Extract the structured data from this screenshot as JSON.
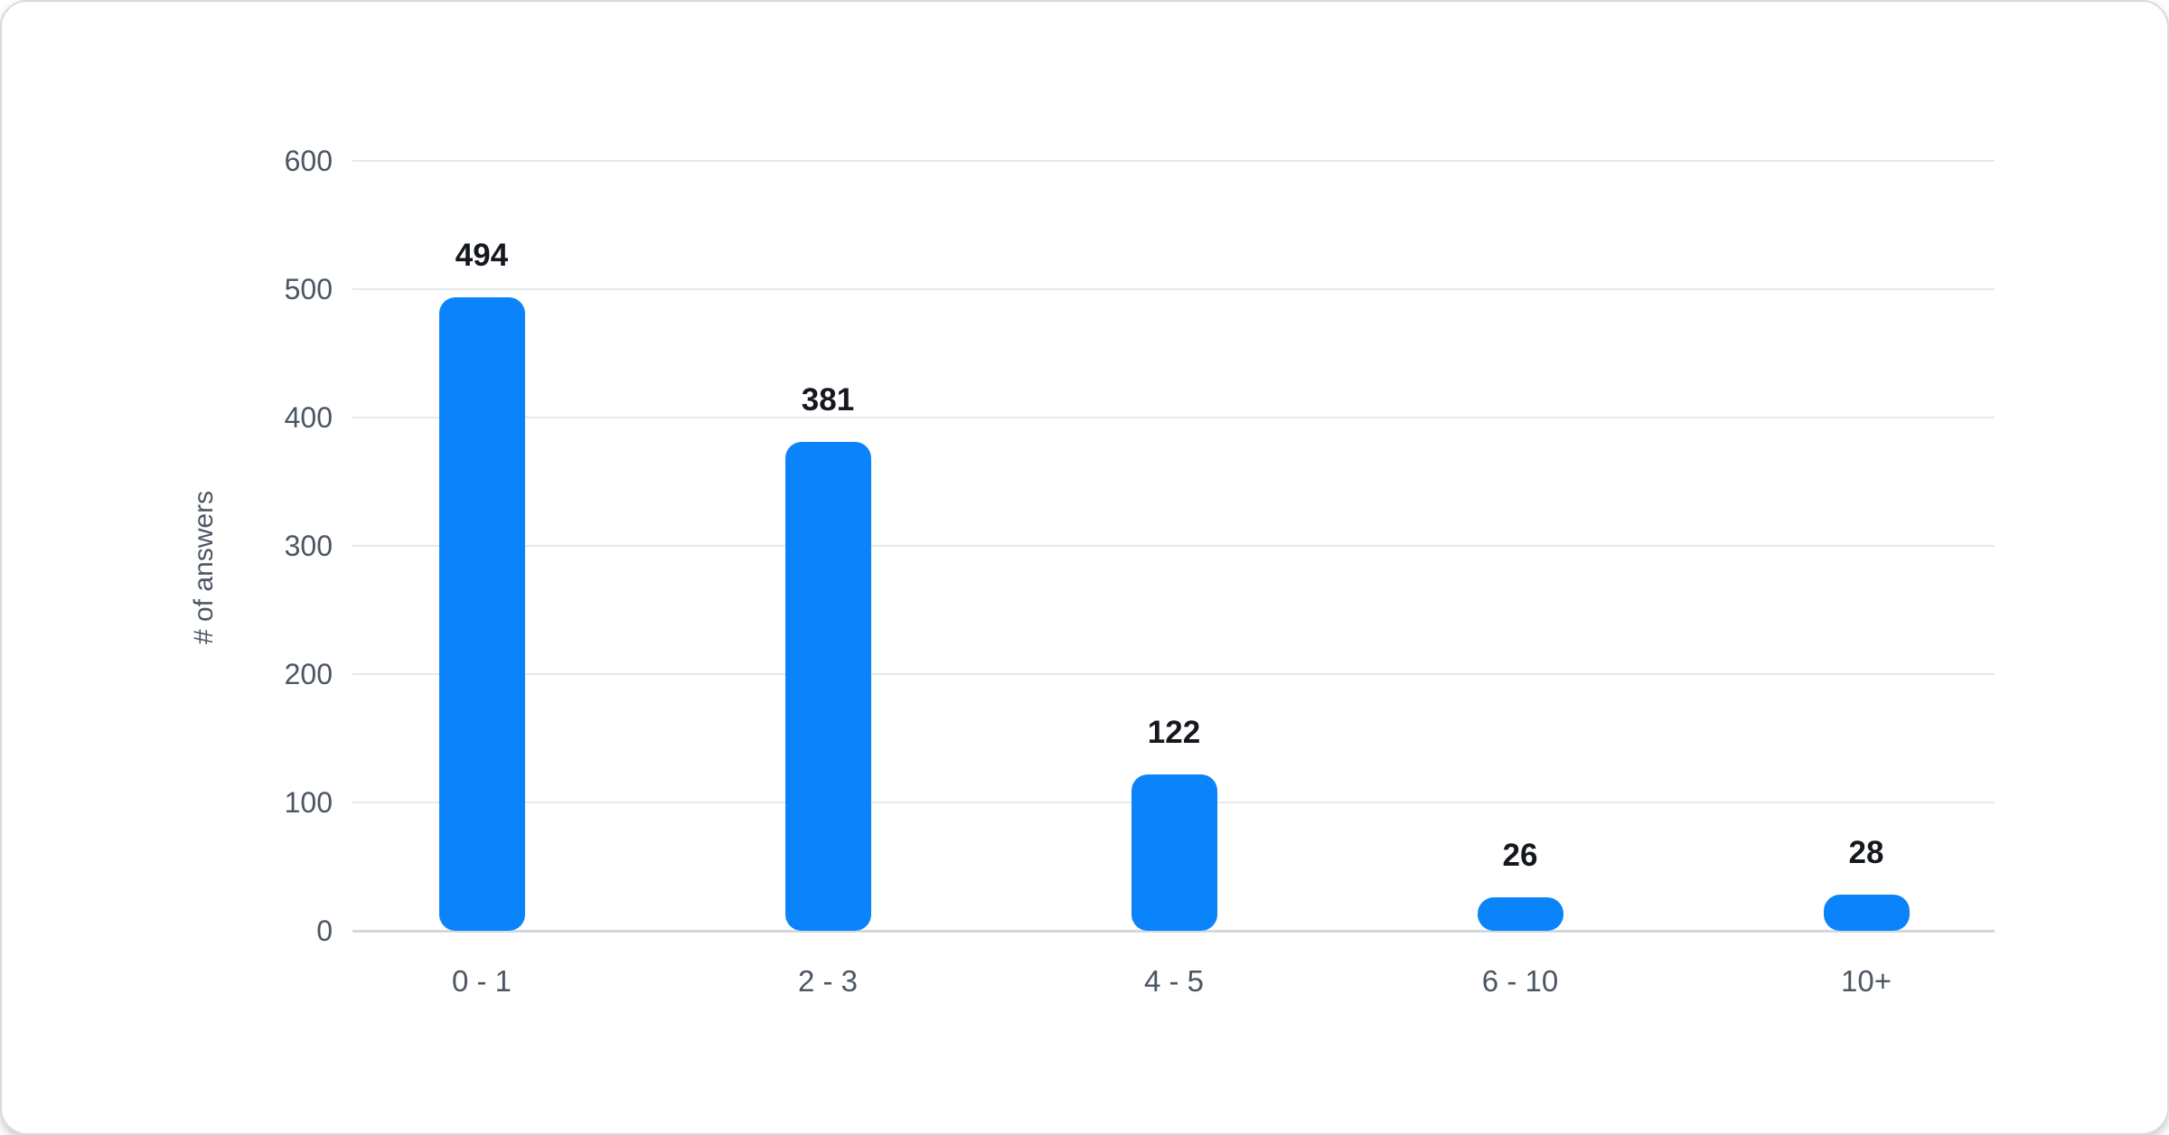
{
  "chart_data": {
    "type": "bar",
    "title": "",
    "xlabel": "",
    "ylabel": "# of answers",
    "categories": [
      "0 - 1",
      "2 - 3",
      "4 - 5",
      "6 - 10",
      "10+"
    ],
    "values": [
      494,
      381,
      122,
      26,
      28
    ],
    "ylim": [
      0,
      600
    ],
    "yticks": [
      600,
      500,
      400,
      300,
      200,
      100,
      0
    ],
    "grid": true,
    "legend": "none",
    "bar_color": "#0b84fb",
    "value_label_color": "#15191f",
    "axis_text_color": "#4c5662",
    "gridline_color": "#e6e9ec",
    "zero_line_color": "#d3d7dc",
    "card_background": "#ffffff"
  }
}
